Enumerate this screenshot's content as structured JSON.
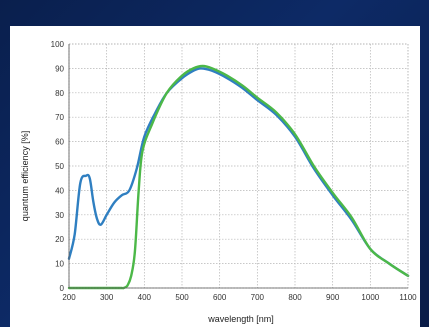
{
  "chart_data": {
    "type": "line",
    "title": "",
    "xlabel": "wavelength [nm]",
    "ylabel": "quantum efficiency [%]",
    "xlim": [
      200,
      1100
    ],
    "ylim": [
      0,
      100
    ],
    "x_ticks": [
      200,
      300,
      400,
      500,
      600,
      700,
      800,
      900,
      1000,
      1100
    ],
    "y_ticks": [
      0,
      10,
      20,
      30,
      40,
      50,
      60,
      70,
      80,
      90,
      100
    ],
    "grid": true,
    "legend": "none",
    "series": [
      {
        "color": "#2f7fc1",
        "points": [
          [
            200,
            12
          ],
          [
            215,
            22
          ],
          [
            230,
            43
          ],
          [
            245,
            46
          ],
          [
            255,
            45
          ],
          [
            265,
            35
          ],
          [
            275,
            28
          ],
          [
            285,
            26
          ],
          [
            300,
            30
          ],
          [
            320,
            35
          ],
          [
            340,
            38
          ],
          [
            360,
            40
          ],
          [
            380,
            49
          ],
          [
            400,
            62
          ],
          [
            430,
            72
          ],
          [
            460,
            80
          ],
          [
            500,
            86
          ],
          [
            530,
            89
          ],
          [
            550,
            90
          ],
          [
            580,
            89
          ],
          [
            620,
            86
          ],
          [
            660,
            82
          ],
          [
            700,
            77
          ],
          [
            750,
            71
          ],
          [
            800,
            62
          ],
          [
            850,
            49
          ],
          [
            900,
            38
          ],
          [
            950,
            28
          ],
          [
            1000,
            16
          ],
          [
            1050,
            10
          ],
          [
            1100,
            5
          ]
        ]
      },
      {
        "color": "#4cb848",
        "points": [
          [
            200,
            0
          ],
          [
            300,
            0
          ],
          [
            320,
            0
          ],
          [
            340,
            0
          ],
          [
            345,
            0
          ],
          [
            355,
            1
          ],
          [
            365,
            5
          ],
          [
            375,
            15
          ],
          [
            385,
            40
          ],
          [
            395,
            56
          ],
          [
            420,
            67
          ],
          [
            460,
            80
          ],
          [
            500,
            87
          ],
          [
            530,
            90
          ],
          [
            555,
            91
          ],
          [
            580,
            90
          ],
          [
            620,
            87
          ],
          [
            660,
            83
          ],
          [
            700,
            78
          ],
          [
            750,
            72
          ],
          [
            800,
            63
          ],
          [
            850,
            50
          ],
          [
            900,
            39
          ],
          [
            950,
            29
          ],
          [
            1000,
            16
          ],
          [
            1050,
            10
          ],
          [
            1100,
            5
          ]
        ]
      }
    ]
  }
}
